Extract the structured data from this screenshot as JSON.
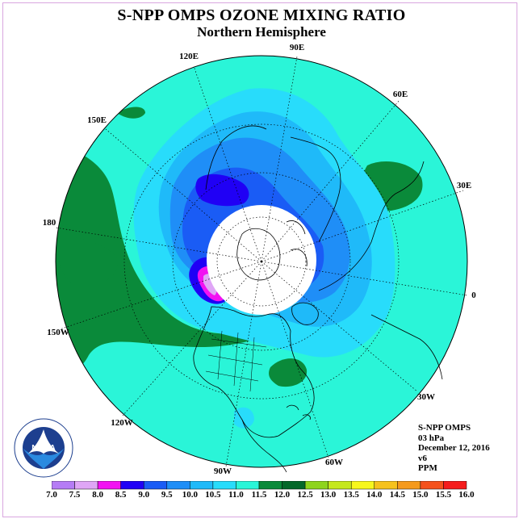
{
  "header": {
    "title": "S-NPP OMPS OZONE MIXING RATIO",
    "subtitle": "Northern Hemisphere"
  },
  "map": {
    "projection": "north polar stereographic",
    "longitude_labels": [
      "90E",
      "60E",
      "30E",
      "0",
      "30W",
      "60W",
      "90W",
      "120W",
      "150W",
      "180",
      "150E",
      "120E"
    ],
    "colors": {
      "ocean_bg": "#ffffff",
      "level_7_0": "#b57cf5",
      "level_7_5": "#dfa6f6",
      "level_8_0": "#f212f2",
      "level_8_5": "#2000f5",
      "level_9_0": "#1a5cf5",
      "level_9_5": "#1f8ef7",
      "level_10_0": "#1fbaf9",
      "level_10_5": "#28dcfb",
      "level_11_0": "#2af5d8",
      "level_11_5": "#0a8a3a",
      "level_12_0": "#04682a",
      "polar_night": "#ffffff"
    }
  },
  "info": {
    "instrument": "S-NPP OMPS",
    "level": "03 hPa",
    "date": "December 12, 2016",
    "version": "v6",
    "units": "PPM"
  },
  "colorbar": {
    "ticks": [
      "7.0",
      "7.5",
      "8.0",
      "8.5",
      "9.0",
      "9.5",
      "10.0",
      "10.5",
      "11.0",
      "11.5",
      "12.0",
      "12.5",
      "13.0",
      "13.5",
      "14.0",
      "14.5",
      "15.0",
      "15.5",
      "16.0"
    ],
    "colors": [
      "#b57cf5",
      "#dfa6f6",
      "#f212f2",
      "#2000f5",
      "#1a5cf5",
      "#1f8ef7",
      "#1fbaf9",
      "#28dcfb",
      "#2af5d8",
      "#0a8a3a",
      "#04682a",
      "#8ed41c",
      "#c5e81c",
      "#f7f71c",
      "#f6c21c",
      "#f59a1c",
      "#f5521c",
      "#f51c1c",
      "#8b5a3c"
    ]
  },
  "logo": {
    "text": "NOAA",
    "ring_text": "NATIONAL OCEANIC AND ATMOSPHERIC ADMINISTRATION · U.S. DEPARTMENT OF COMMERCE"
  }
}
